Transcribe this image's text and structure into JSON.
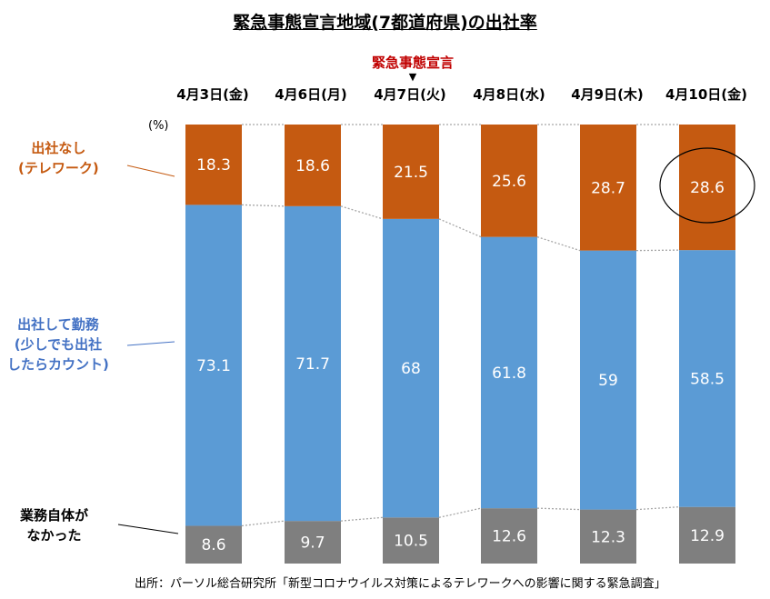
{
  "title": "緊急事態宣言地域(7都道府県)の出社率",
  "announcement": {
    "label": "緊急事態宣言",
    "arrow": "▼"
  },
  "unit": "(%)",
  "source": "出所：パーソル総合研究所「新型コロナウイルス対策によるテレワークへの影響に関する緊急調査」",
  "legend": {
    "remote": [
      "出社なし",
      "(テレワーク)"
    ],
    "office": [
      "出社して勤務",
      "(少しでも出社",
      "したらカウント)"
    ],
    "none": [
      "業務自体が",
      "なかった"
    ]
  },
  "colors": {
    "remote": "#c55a11",
    "office": "#5b9bd5",
    "none": "#7f7f7f"
  },
  "chart_data": {
    "type": "bar",
    "stacked": true,
    "title": "緊急事態宣言地域(7都道府県)の出社率",
    "categories": [
      "4月3日(金)",
      "4月6日(月)",
      "4月7日(火)",
      "4月8日(水)",
      "4月9日(木)",
      "4月10日(金)"
    ],
    "series": [
      {
        "name": "業務自体がなかった",
        "values": [
          8.6,
          9.7,
          10.5,
          12.6,
          12.3,
          12.9
        ]
      },
      {
        "name": "出社して勤務(少しでも出社したらカウント)",
        "values": [
          73.1,
          71.7,
          68,
          61.8,
          59,
          58.5
        ]
      },
      {
        "name": "出社なし(テレワーク)",
        "values": [
          18.3,
          18.6,
          21.5,
          25.6,
          28.7,
          28.6
        ]
      }
    ],
    "value_labels": {
      "none": [
        "8.6",
        "9.7",
        "10.5",
        "12.6",
        "12.3",
        "12.9"
      ],
      "office": [
        "73.1",
        "71.7",
        "68",
        "61.8",
        "59",
        "58.5"
      ],
      "remote": [
        "18.3",
        "18.6",
        "21.5",
        "25.6",
        "28.7",
        "28.6"
      ]
    },
    "ylabel": "(%)",
    "ylim": [
      0,
      100
    ],
    "highlight": "4月10日(金) 28.6",
    "annotation": "緊急事態宣言 at 4月7日(火)"
  }
}
